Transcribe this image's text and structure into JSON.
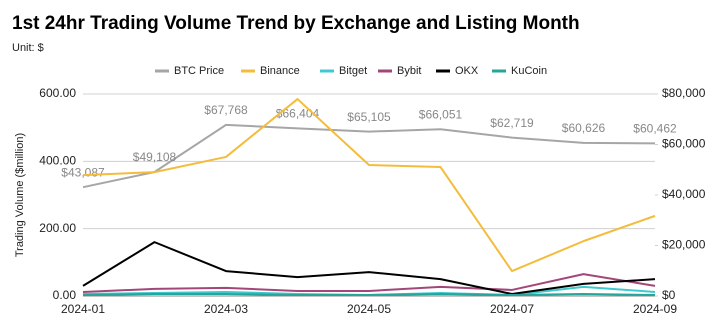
{
  "chart_data": {
    "type": "line",
    "title": "1st 24hr Trading Volume Trend by Exchange and Listing Month",
    "subtitle": "Unit: $",
    "y_axis_label": "Trading Volume ($million)",
    "categories": [
      "2024-01",
      null,
      "2024-03",
      null,
      "2024-05",
      null,
      "2024-07",
      null,
      "2024-09"
    ],
    "ylim": [
      0,
      600
    ],
    "yticks": [
      {
        "value": 0,
        "label": "0.00"
      },
      {
        "value": 200,
        "label": "200.00"
      },
      {
        "value": 400,
        "label": "400.00"
      },
      {
        "value": 600,
        "label": "600.00"
      }
    ],
    "y2lim": [
      0,
      80000
    ],
    "y2ticks": [
      {
        "value": 0,
        "label": "$0"
      },
      {
        "value": 20000,
        "label": "$20,000"
      },
      {
        "value": 40000,
        "label": "$40,000"
      },
      {
        "value": 60000,
        "label": "$60,000"
      },
      {
        "value": 80000,
        "label": "$80,000"
      }
    ],
    "grid": true,
    "legend": "top",
    "series": [
      {
        "name": "BTC Price",
        "color": "#a6a6a6",
        "axis": "y2",
        "values": [
          43087,
          49108,
          67768,
          66404,
          65105,
          66051,
          62719,
          60626,
          60462
        ],
        "value_labels": [
          "$43,087",
          "$49,108",
          "$67,768",
          "$66,404",
          "$65,105",
          "$66,051",
          "$62,719",
          "$60,626",
          "$60,462"
        ]
      },
      {
        "name": "Binance",
        "color": "#f4bc3c",
        "values": [
          359,
          368,
          413,
          585,
          389,
          383,
          74,
          163,
          238
        ]
      },
      {
        "name": "Bitget",
        "color": "#3ec9d0",
        "values": [
          6,
          9,
          12,
          6,
          3,
          9,
          3,
          27,
          12
        ]
      },
      {
        "name": "Bybit",
        "color": "#a3477a",
        "values": [
          12,
          21,
          24,
          15,
          15,
          27,
          18,
          65,
          30
        ]
      },
      {
        "name": "OKX",
        "color": "#000000",
        "values": [
          30,
          160,
          74,
          56,
          71,
          50,
          6,
          36,
          50
        ]
      },
      {
        "name": "KuCoin",
        "color": "#26a69a",
        "values": [
          3,
          6,
          6,
          3,
          3,
          6,
          3,
          6,
          3
        ]
      }
    ]
  }
}
